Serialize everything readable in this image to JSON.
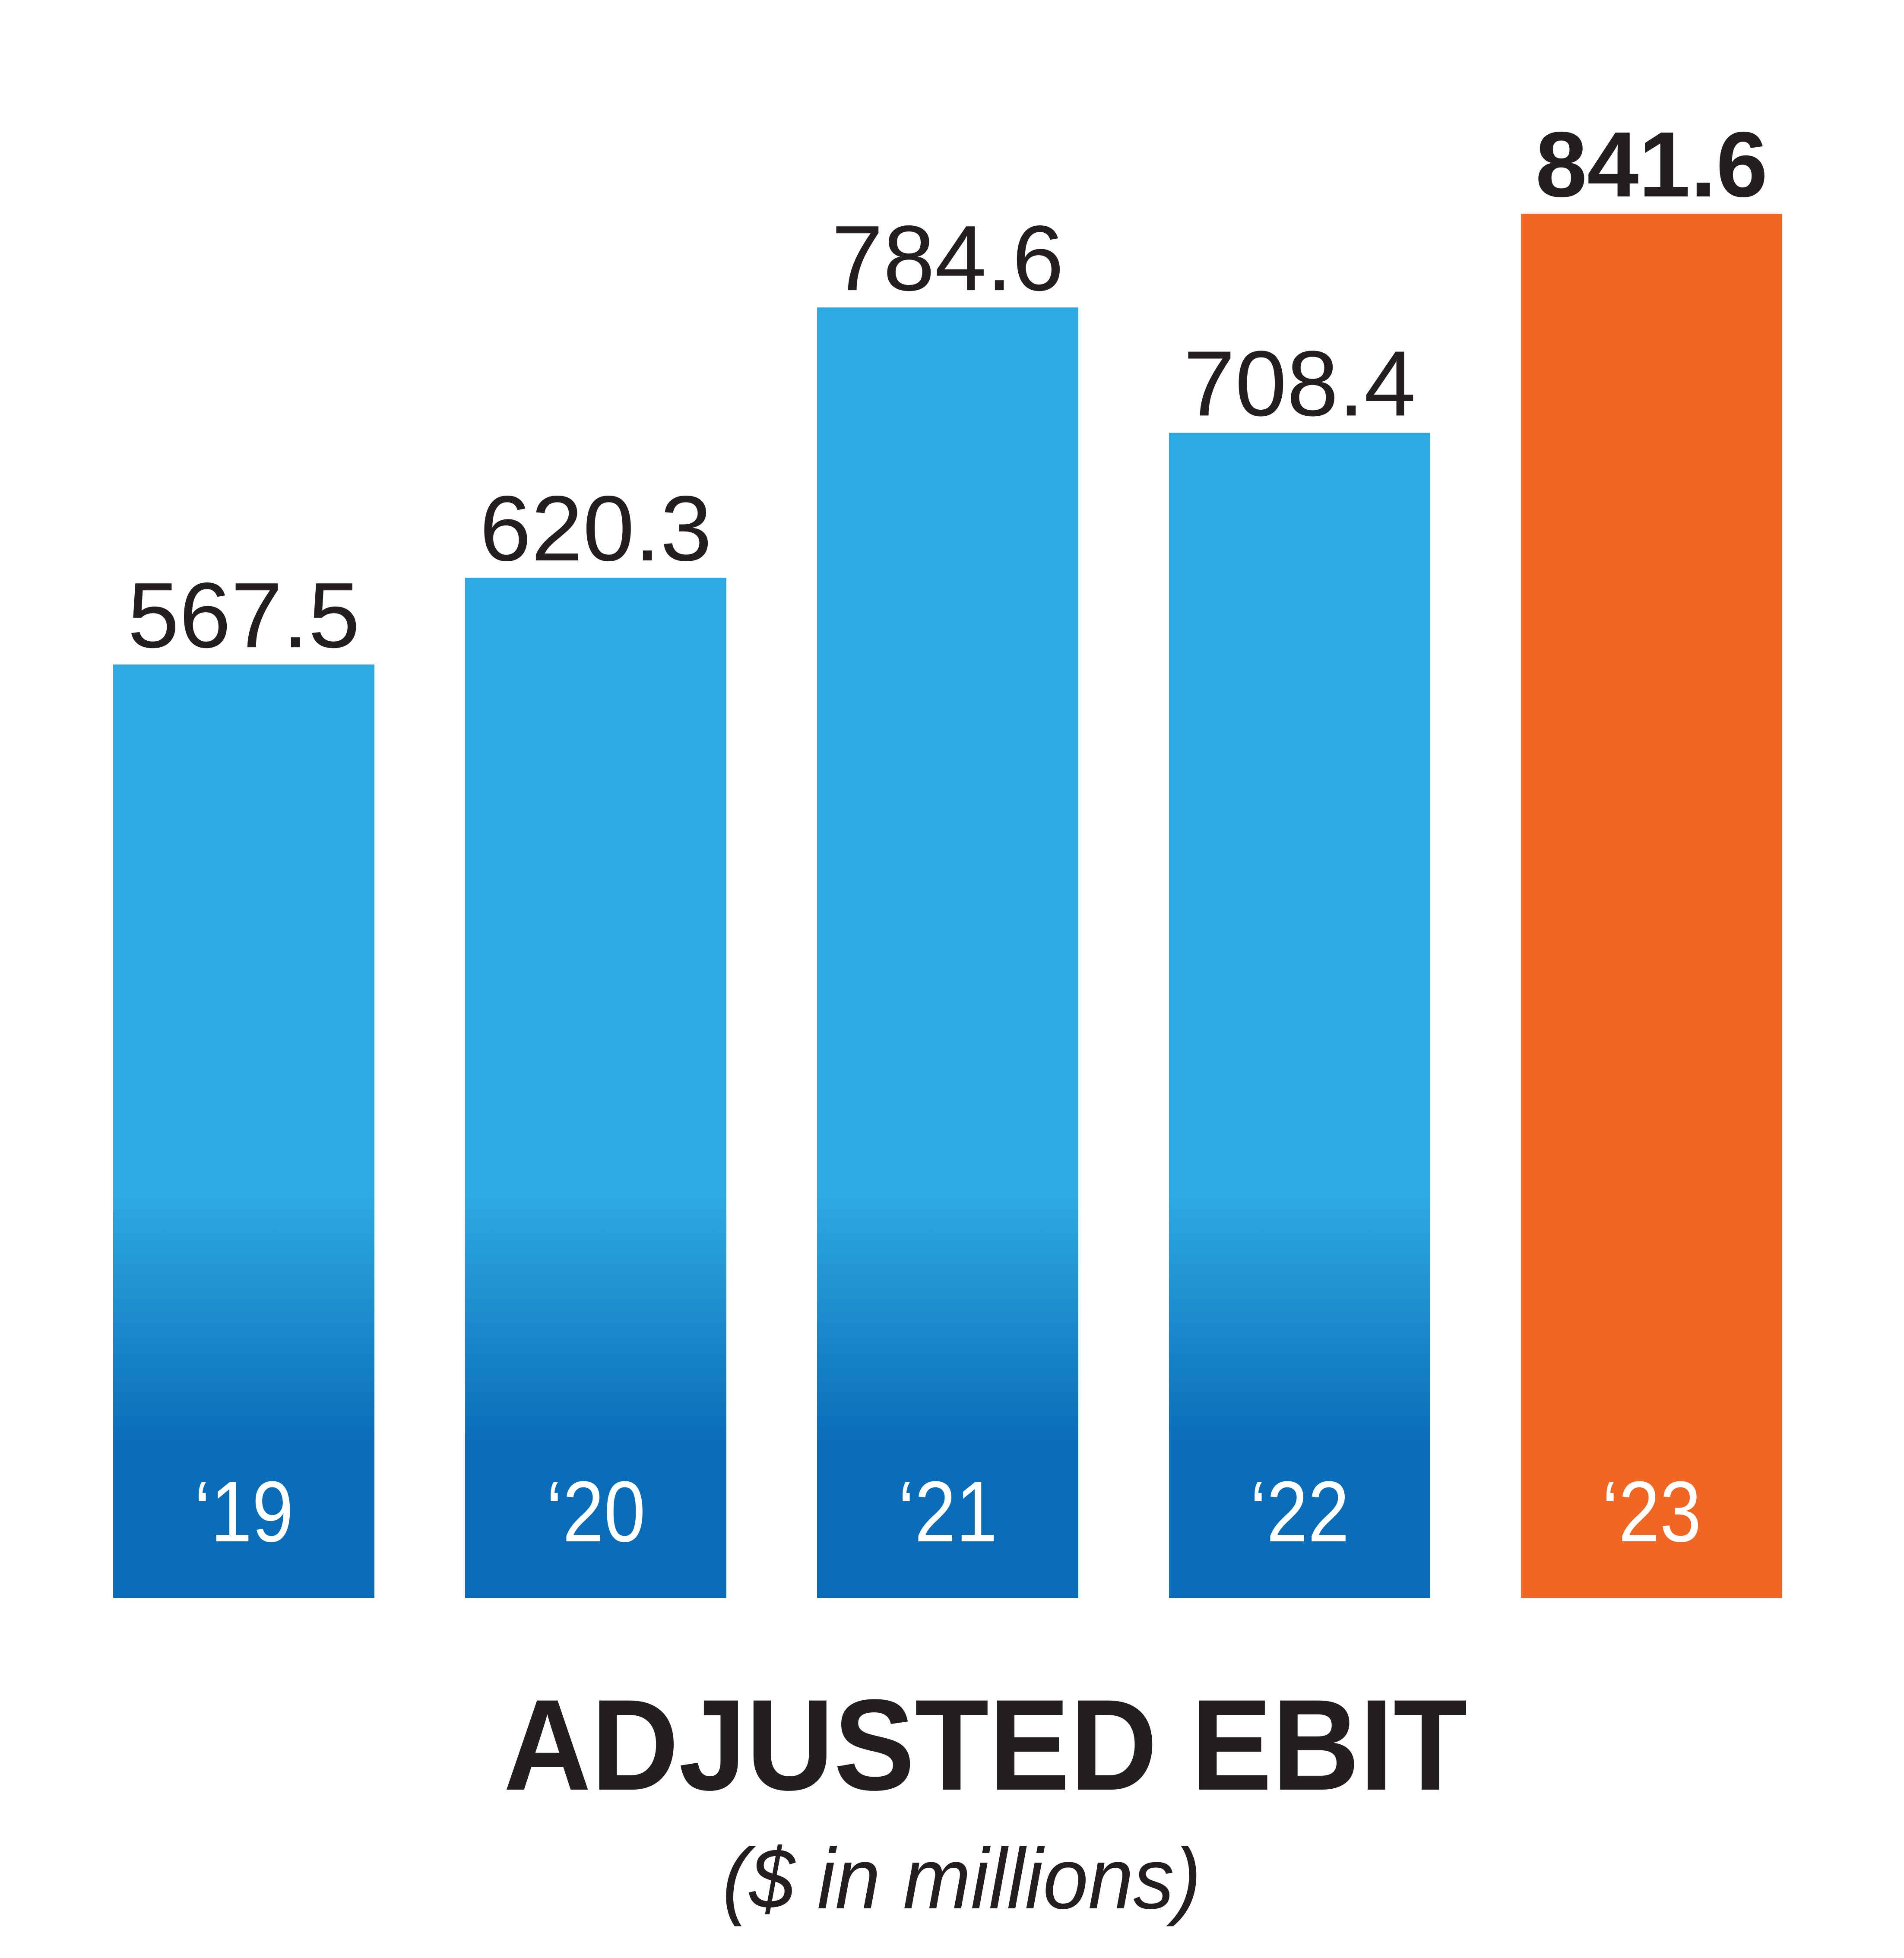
{
  "chart_data": {
    "type": "bar",
    "title": "ADJUSTED EBIT",
    "subtitle": "($ in millions)",
    "categories": [
      "‘19",
      "‘20",
      "‘21",
      "‘22",
      "‘23"
    ],
    "values": [
      567.5,
      620.3,
      784.6,
      708.4,
      841.6
    ],
    "colors": [
      "#2eaae2",
      "#2eaae2",
      "#2eaae2",
      "#2eaae2",
      "#f06724"
    ],
    "gradient_to": [
      "#0a6db8",
      "#0a6db8",
      "#0a6db8",
      "#0a6db8",
      "#f06724"
    ],
    "value_label_bold": [
      false,
      false,
      false,
      false,
      true
    ]
  }
}
